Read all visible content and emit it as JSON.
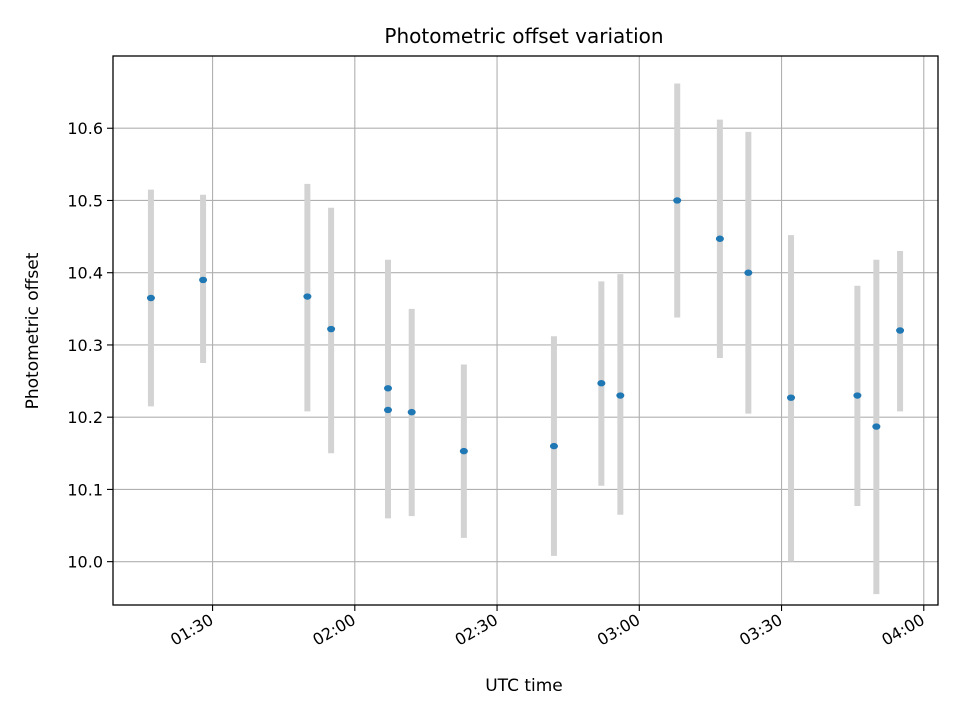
{
  "chart_data": {
    "type": "scatter",
    "title": "Photometric offset variation",
    "xlabel": "UTC time",
    "ylabel": "Photometric offset",
    "x_ticks": [
      "01:30",
      "02:00",
      "02:30",
      "03:00",
      "03:30",
      "04:00"
    ],
    "y_ticks": [
      "10.0",
      "10.1",
      "10.2",
      "10.3",
      "10.4",
      "10.5",
      "10.6"
    ],
    "xlim": [
      "01:09",
      "04:03"
    ],
    "ylim": [
      9.94,
      10.7
    ],
    "grid": true,
    "points": [
      {
        "time": "01:17",
        "y": 10.365,
        "low": 10.215,
        "high": 10.515
      },
      {
        "time": "01:28",
        "y": 10.39,
        "low": 10.275,
        "high": 10.508
      },
      {
        "time": "01:50",
        "y": 10.367,
        "low": 10.208,
        "high": 10.523
      },
      {
        "time": "01:55",
        "y": 10.322,
        "low": 10.15,
        "high": 10.49
      },
      {
        "time": "02:07",
        "y": 10.24,
        "low": 10.062,
        "high": 10.418
      },
      {
        "time": "02:07",
        "y": 10.21,
        "low": 10.06,
        "high": 10.36
      },
      {
        "time": "02:12",
        "y": 10.207,
        "low": 10.063,
        "high": 10.35
      },
      {
        "time": "02:23",
        "y": 10.153,
        "low": 10.033,
        "high": 10.273
      },
      {
        "time": "02:42",
        "y": 10.16,
        "low": 10.008,
        "high": 10.312
      },
      {
        "time": "02:52",
        "y": 10.247,
        "low": 10.105,
        "high": 10.388
      },
      {
        "time": "02:56",
        "y": 10.23,
        "low": 10.065,
        "high": 10.398
      },
      {
        "time": "03:08",
        "y": 10.5,
        "low": 10.338,
        "high": 10.662
      },
      {
        "time": "03:17",
        "y": 10.447,
        "low": 10.282,
        "high": 10.612
      },
      {
        "time": "03:23",
        "y": 10.4,
        "low": 10.205,
        "high": 10.595
      },
      {
        "time": "03:32",
        "y": 10.227,
        "low": 10.0,
        "high": 10.452
      },
      {
        "time": "03:46",
        "y": 10.23,
        "low": 10.077,
        "high": 10.382
      },
      {
        "time": "03:50",
        "y": 10.187,
        "low": 9.955,
        "high": 10.418
      },
      {
        "time": "03:55",
        "y": 10.32,
        "low": 10.208,
        "high": 10.43
      }
    ],
    "marker_color": "#1f77b4",
    "errorbar_color": "#d3d3d3"
  }
}
